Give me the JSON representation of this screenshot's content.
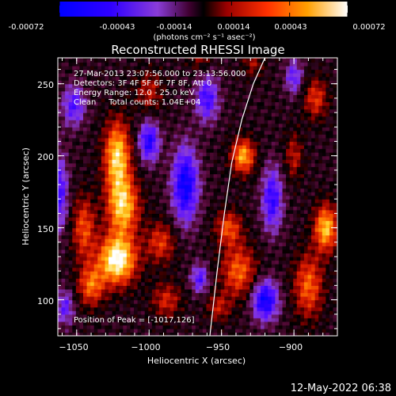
{
  "colorbar": {
    "ticks": [
      "-0.00072",
      "-0.00043",
      "-0.00014",
      "0.00014",
      "0.00043",
      "0.00072"
    ],
    "unit_label": "(photons cm⁻² s⁻¹ asec⁻²)"
  },
  "chart_data": {
    "type": "heatmap",
    "title": "Reconstructed RHESSI Image",
    "xlabel": "Heliocentric X (arcsec)",
    "ylabel": "Heliocentric Y (arcsec)",
    "xlim": [
      -1063,
      -870
    ],
    "ylim": [
      75,
      268
    ],
    "x_ticks": [
      -1050,
      -1000,
      -950,
      -900
    ],
    "x_tick_labels": [
      "−1050",
      "−1000",
      "−950",
      "−900"
    ],
    "y_ticks": [
      100,
      150,
      200,
      250
    ],
    "y_tick_labels": [
      "100",
      "150",
      "200",
      "250"
    ],
    "color_range": [
      -0.00072,
      0.00072
    ],
    "colormap": [
      "#0000ff",
      "#2a00ff",
      "#5a10ff",
      "#8a3cd8",
      "#5a0a3a",
      "#000000",
      "#8a0000",
      "#e02000",
      "#ff7000",
      "#ffcc20",
      "#ffffff"
    ],
    "limb_curve": [
      [
        -958,
        75
      ],
      [
        -953,
        120
      ],
      [
        -948,
        160
      ],
      [
        -943,
        195
      ],
      [
        -936,
        225
      ],
      [
        -928,
        250
      ],
      [
        -920,
        268
      ]
    ],
    "annotations": [
      "27-Mar-2013 23:07:56.000 to 23:13:56.000",
      "Detectors: 3F 4F 5F 6F 7F 8F, Att 0",
      "Energy Range: 12.0 - 25.0 keV",
      "Clean     Total counts: 1.04E+04"
    ],
    "peak_label": "Position of Peak = [-1017,126]",
    "peak": [
      -1017,
      126
    ]
  },
  "footer": {
    "timestamp": "12-May-2022 06:38"
  }
}
